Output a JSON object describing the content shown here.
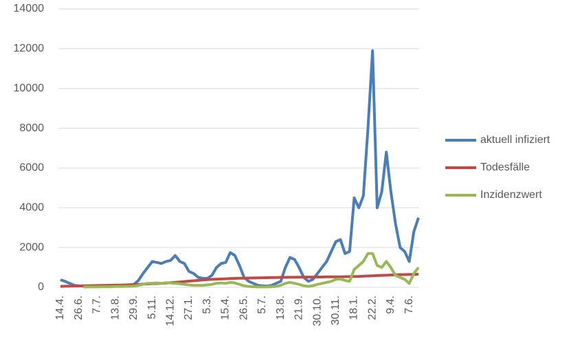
{
  "chart_data": {
    "type": "line",
    "categories": [
      "14.4.",
      null,
      null,
      null,
      "26.6.",
      null,
      null,
      null,
      "7.7.",
      null,
      null,
      null,
      "13.8.",
      null,
      null,
      null,
      "29.9.",
      null,
      null,
      null,
      "5.11.",
      null,
      null,
      null,
      "14.12.",
      null,
      null,
      null,
      "27.1.",
      null,
      null,
      null,
      "5.3.",
      null,
      null,
      null,
      "15.4.",
      null,
      null,
      null,
      "26.5.",
      null,
      null,
      null,
      "5.7.",
      null,
      null,
      null,
      "13.8.",
      null,
      null,
      null,
      "21.9.",
      null,
      null,
      null,
      "30.10.",
      null,
      null,
      null,
      "30.11.",
      null,
      null,
      null,
      "18.1.",
      null,
      null,
      null,
      "22.2.",
      null,
      null,
      null,
      "9.4.",
      null,
      null,
      null,
      "7.6.",
      null,
      null
    ],
    "series": [
      {
        "name": "aktuell infiziert",
        "color": "#4a7ebb",
        "values": [
          380,
          300,
          200,
          100,
          80,
          60,
          50,
          50,
          50,
          60,
          80,
          100,
          100,
          80,
          80,
          100,
          150,
          350,
          700,
          1000,
          1300,
          1250,
          1200,
          1300,
          1350,
          1600,
          1300,
          1200,
          800,
          700,
          500,
          450,
          450,
          600,
          1000,
          1200,
          1250,
          1750,
          1600,
          1100,
          500,
          300,
          200,
          100,
          80,
          60,
          100,
          200,
          300,
          1000,
          1500,
          1400,
          1000,
          500,
          300,
          400,
          700,
          1000,
          1300,
          1800,
          2300,
          2400,
          1700,
          1800,
          4500,
          4000,
          4600,
          8000,
          11900,
          4000,
          4800,
          6800,
          4800,
          3200,
          2000,
          1800,
          1300,
          2800,
          3500
        ]
      },
      {
        "name": "Todesfälle",
        "color": "#be4b48",
        "values": [
          50,
          55,
          60,
          65,
          70,
          75,
          80,
          85,
          90,
          95,
          100,
          105,
          110,
          115,
          120,
          130,
          140,
          150,
          160,
          170,
          180,
          190,
          200,
          210,
          230,
          250,
          270,
          290,
          310,
          330,
          350,
          370,
          390,
          400,
          410,
          420,
          430,
          440,
          450,
          455,
          460,
          465,
          470,
          475,
          480,
          485,
          490,
          495,
          500,
          500,
          505,
          505,
          510,
          510,
          515,
          515,
          520,
          520,
          525,
          525,
          530,
          530,
          535,
          540,
          545,
          550,
          560,
          570,
          580,
          590,
          600,
          610,
          620,
          630,
          640,
          640,
          650,
          650,
          660
        ]
      },
      {
        "name": "Inzidenzwert",
        "color": "#98b954",
        "values": [
          null,
          null,
          null,
          null,
          null,
          20,
          20,
          20,
          20,
          30,
          30,
          30,
          40,
          40,
          50,
          50,
          60,
          100,
          150,
          200,
          200,
          220,
          200,
          230,
          220,
          200,
          180,
          150,
          120,
          100,
          100,
          100,
          120,
          150,
          200,
          220,
          200,
          250,
          220,
          150,
          80,
          40,
          30,
          20,
          20,
          20,
          30,
          50,
          100,
          200,
          250,
          200,
          150,
          80,
          50,
          80,
          150,
          200,
          250,
          300,
          400,
          420,
          350,
          300,
          900,
          1100,
          1300,
          1700,
          1700,
          1100,
          1000,
          1300,
          1000,
          600,
          500,
          400,
          200,
          700,
          1000
        ]
      }
    ],
    "ylim": [
      0,
      14000
    ],
    "yticks": [
      0,
      2000,
      4000,
      6000,
      8000,
      10000,
      12000,
      14000
    ],
    "grid": true,
    "legend": "right"
  }
}
